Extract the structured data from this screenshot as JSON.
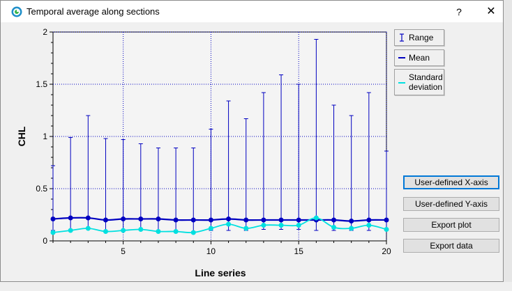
{
  "window": {
    "title": "Temporal average along sections",
    "help_glyph": "?",
    "close_glyph": "✕"
  },
  "legend": [
    {
      "label": "Range",
      "color": "#0000c0"
    },
    {
      "label": "Mean",
      "color": "#0000c0"
    },
    {
      "label": "Standard deviation",
      "color": "#00e0e0"
    }
  ],
  "buttons": {
    "user_x": "User-defined X-axis",
    "user_y": "User-defined Y-axis",
    "export_plot": "Export plot",
    "export_data": "Export data"
  },
  "chart_data": {
    "type": "line",
    "xlabel": "Line series",
    "ylabel": "CHL",
    "xlim": [
      1,
      20
    ],
    "ylim": [
      0,
      2
    ],
    "x_ticks": [
      5,
      10,
      15,
      20
    ],
    "y_ticks": [
      0,
      0.5,
      1,
      1.5,
      2
    ],
    "y_tick_labels": [
      "0",
      "0.5",
      "1",
      "1.5",
      "2"
    ],
    "grid": true,
    "x": [
      1,
      2,
      3,
      4,
      5,
      6,
      7,
      8,
      9,
      10,
      11,
      12,
      13,
      14,
      15,
      16,
      17,
      18,
      19,
      20
    ],
    "series": [
      {
        "name": "Range",
        "low": [
          0.1,
          0.11,
          0.12,
          0.1,
          0.1,
          0.11,
          0.1,
          0.1,
          0.09,
          0.1,
          0.1,
          0.1,
          0.11,
          0.11,
          0.11,
          0.1,
          0.1,
          0.1,
          0.1,
          0.1
        ],
        "high": [
          0.72,
          0.99,
          1.2,
          0.98,
          0.97,
          0.93,
          0.89,
          0.89,
          0.89,
          1.07,
          1.34,
          1.17,
          1.42,
          1.59,
          1.5,
          1.93,
          1.3,
          1.2,
          1.42,
          0.86
        ],
        "color": "#0000c0"
      },
      {
        "name": "Mean",
        "values": [
          0.21,
          0.22,
          0.22,
          0.2,
          0.21,
          0.21,
          0.21,
          0.2,
          0.2,
          0.2,
          0.21,
          0.2,
          0.2,
          0.2,
          0.2,
          0.2,
          0.2,
          0.19,
          0.2,
          0.2
        ],
        "color": "#0000c0"
      },
      {
        "name": "Standard deviation",
        "values": [
          0.08,
          0.1,
          0.12,
          0.09,
          0.1,
          0.11,
          0.09,
          0.09,
          0.08,
          0.12,
          0.16,
          0.12,
          0.15,
          0.15,
          0.15,
          0.22,
          0.13,
          0.12,
          0.15,
          0.11
        ],
        "color": "#00e0e0"
      }
    ]
  }
}
